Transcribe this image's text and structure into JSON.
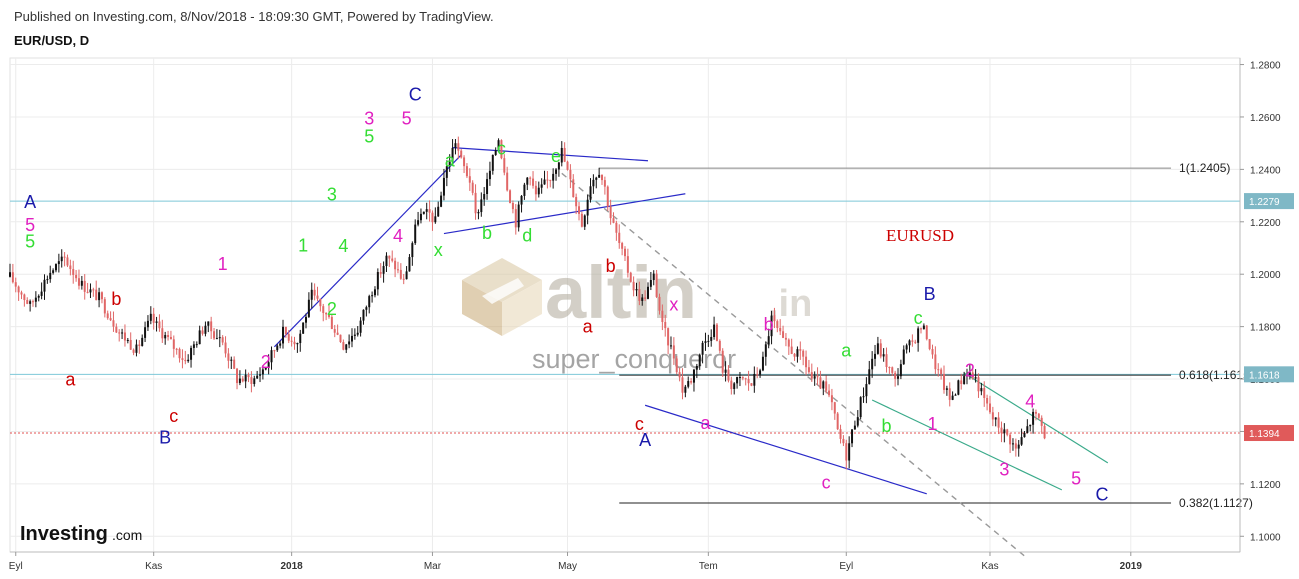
{
  "header": {
    "published": "Published on Investing.com, 8/Nov/2018 - 18:09:30 GMT, Powered by TradingView.",
    "symbol": "EUR/USD, D"
  },
  "brand": {
    "logo_text": "Investing",
    "logo_suffix": ".com"
  },
  "watermark": {
    "site": "altin",
    "site_suffix": ".in",
    "author": "super_conqueror"
  },
  "chart_label": {
    "text": "EURUSD",
    "color": "#cc0000"
  },
  "colors": {
    "bull": "#111111",
    "bear": "#e06666",
    "grid": "#ececec",
    "hline_blue": "#7ec8d8",
    "hline_current": "#e05050",
    "trend_blue": "#2a2ac8",
    "trend_green": "#3aaa8a",
    "fib": "#222222",
    "fib_level_1": "#888888",
    "projection": "#999999",
    "badge_bg": "#7fb8c6",
    "badge_current_bg": "#e05a5a"
  },
  "chart_data": {
    "type": "candlestick",
    "y_axis": {
      "ticks": [
        "1.1000",
        "1.1200",
        "1.1400",
        "1.1600",
        "1.1800",
        "1.2000",
        "1.2200",
        "1.2400",
        "1.2600",
        "1.2800"
      ],
      "ylim": [
        1.094,
        1.2825
      ]
    },
    "x_axis": {
      "ticks": [
        "Eyl",
        "Kas",
        "2018",
        "Mar",
        "May",
        "Tem",
        "Eyl",
        "Kas",
        "2019",
        "Mar"
      ]
    },
    "price_badges": [
      {
        "label": "1.2279",
        "value": 1.2279,
        "kind": "level"
      },
      {
        "label": "1.1618",
        "value": 1.1618,
        "kind": "level"
      },
      {
        "label": "1.1394",
        "value": 1.1394,
        "kind": "current"
      }
    ],
    "fib_levels": [
      {
        "label": "1(1.2405)",
        "value": 1.2405
      },
      {
        "label": "0.618(1.1615)",
        "value": 1.1615
      },
      {
        "label": "0.382(1.1127)",
        "value": 1.1127
      }
    ],
    "price_path": [
      [
        0,
        1.199
      ],
      [
        7,
        1.188
      ],
      [
        14,
        1.201
      ],
      [
        19,
        1.206
      ],
      [
        25,
        1.196
      ],
      [
        31,
        1.191
      ],
      [
        38,
        1.178
      ],
      [
        44,
        1.171
      ],
      [
        49,
        1.183
      ],
      [
        55,
        1.175
      ],
      [
        61,
        1.167
      ],
      [
        68,
        1.181
      ],
      [
        74,
        1.174
      ],
      [
        79,
        1.16
      ],
      [
        85,
        1.16
      ],
      [
        89,
        1.165
      ],
      [
        95,
        1.178
      ],
      [
        100,
        1.174
      ],
      [
        105,
        1.192
      ],
      [
        111,
        1.183
      ],
      [
        116,
        1.173
      ],
      [
        121,
        1.179
      ],
      [
        126,
        1.194
      ],
      [
        131,
        1.206
      ],
      [
        134,
        1.203
      ],
      [
        137,
        1.197
      ],
      [
        142,
        1.222
      ],
      [
        146,
        1.223
      ],
      [
        148,
        1.22
      ],
      [
        151,
        1.237
      ],
      [
        155,
        1.251
      ],
      [
        157,
        1.243
      ],
      [
        160,
        1.236
      ],
      [
        162,
        1.222
      ],
      [
        166,
        1.235
      ],
      [
        170,
        1.252
      ],
      [
        173,
        1.234
      ],
      [
        176,
        1.22
      ],
      [
        180,
        1.239
      ],
      [
        183,
        1.23
      ],
      [
        188,
        1.237
      ],
      [
        192,
        1.247
      ],
      [
        196,
        1.231
      ],
      [
        199,
        1.219
      ],
      [
        202,
        1.235
      ],
      [
        205,
        1.24
      ],
      [
        207,
        1.233
      ],
      [
        209,
        1.222
      ],
      [
        213,
        1.208
      ],
      [
        217,
        1.195
      ],
      [
        220,
        1.19
      ],
      [
        224,
        1.199
      ],
      [
        227,
        1.18
      ],
      [
        231,
        1.169
      ],
      [
        234,
        1.156
      ],
      [
        237,
        1.16
      ],
      [
        241,
        1.173
      ],
      [
        245,
        1.18
      ],
      [
        248,
        1.164
      ],
      [
        251,
        1.158
      ],
      [
        255,
        1.16
      ],
      [
        258,
        1.158
      ],
      [
        262,
        1.167
      ],
      [
        265,
        1.183
      ],
      [
        269,
        1.174
      ],
      [
        273,
        1.17
      ],
      [
        276,
        1.168
      ],
      [
        279,
        1.16
      ],
      [
        283,
        1.157
      ],
      [
        286,
        1.15
      ],
      [
        288,
        1.14
      ],
      [
        291,
        1.131
      ],
      [
        294,
        1.144
      ],
      [
        297,
        1.155
      ],
      [
        300,
        1.168
      ],
      [
        302,
        1.172
      ],
      [
        305,
        1.166
      ],
      [
        308,
        1.159
      ],
      [
        311,
        1.17
      ],
      [
        314,
        1.174
      ],
      [
        317,
        1.18
      ],
      [
        319,
        1.177
      ],
      [
        321,
        1.168
      ],
      [
        324,
        1.16
      ],
      [
        327,
        1.152
      ],
      [
        330,
        1.158
      ],
      [
        333,
        1.163
      ],
      [
        336,
        1.16
      ],
      [
        339,
        1.152
      ],
      [
        342,
        1.145
      ],
      [
        345,
        1.141
      ],
      [
        348,
        1.137
      ],
      [
        350,
        1.133
      ],
      [
        353,
        1.139
      ],
      [
        356,
        1.146
      ],
      [
        358,
        1.145
      ],
      [
        360,
        1.139
      ]
    ],
    "wave_labels": [
      {
        "text": "A",
        "color": "#1a1aaa",
        "t": 7,
        "p": 1.2275
      },
      {
        "text": "5",
        "color": "#e020c0",
        "t": 7,
        "p": 1.2187
      },
      {
        "text": "5",
        "color": "#33dd33",
        "t": 7,
        "p": 1.2125
      },
      {
        "text": "a",
        "color": "#cc0000",
        "t": 21,
        "p": 1.1598
      },
      {
        "text": "b",
        "color": "#cc0000",
        "t": 37,
        "p": 1.1905
      },
      {
        "text": "c",
        "color": "#cc0000",
        "t": 57,
        "p": 1.1458
      },
      {
        "text": "B",
        "color": "#1a1aaa",
        "t": 54,
        "p": 1.1377
      },
      {
        "text": "1",
        "color": "#e020c0",
        "t": 74,
        "p": 1.2038
      },
      {
        "text": "2",
        "color": "#e020c0",
        "t": 89,
        "p": 1.1665
      },
      {
        "text": "1",
        "color": "#33dd33",
        "t": 102,
        "p": 1.211
      },
      {
        "text": "2",
        "color": "#33dd33",
        "t": 112,
        "p": 1.1868
      },
      {
        "text": "3",
        "color": "#33dd33",
        "t": 112,
        "p": 1.2305
      },
      {
        "text": "4",
        "color": "#33dd33",
        "t": 116,
        "p": 1.2108
      },
      {
        "text": "5",
        "color": "#33dd33",
        "t": 125,
        "p": 1.2525
      },
      {
        "text": "3",
        "color": "#e020c0",
        "t": 125,
        "p": 1.2595
      },
      {
        "text": "4",
        "color": "#e020c0",
        "t": 135,
        "p": 1.2145
      },
      {
        "text": "5",
        "color": "#e020c0",
        "t": 138,
        "p": 1.2595
      },
      {
        "text": "C",
        "color": "#1a1aaa",
        "t": 141,
        "p": 1.2685
      },
      {
        "text": "x",
        "color": "#33dd33",
        "t": 149,
        "p": 1.2092
      },
      {
        "text": "a",
        "color": "#33dd33",
        "t": 153,
        "p": 1.2433
      },
      {
        "text": "b",
        "color": "#33dd33",
        "t": 166,
        "p": 1.2158
      },
      {
        "text": "c",
        "color": "#33dd33",
        "t": 171,
        "p": 1.248
      },
      {
        "text": "d",
        "color": "#33dd33",
        "t": 180,
        "p": 1.2148
      },
      {
        "text": "e",
        "color": "#33dd33",
        "t": 190,
        "p": 1.2452
      },
      {
        "text": "a",
        "color": "#cc0000",
        "t": 201,
        "p": 1.18
      },
      {
        "text": "b",
        "color": "#cc0000",
        "t": 209,
        "p": 1.2032
      },
      {
        "text": "x",
        "color": "#e020c0",
        "t": 231,
        "p": 1.1885
      },
      {
        "text": "c",
        "color": "#cc0000",
        "t": 219,
        "p": 1.1428
      },
      {
        "text": "A",
        "color": "#1a1aaa",
        "t": 221,
        "p": 1.1368
      },
      {
        "text": "a",
        "color": "#e020c0",
        "t": 242,
        "p": 1.1433
      },
      {
        "text": "b",
        "color": "#e020c0",
        "t": 264,
        "p": 1.1808
      },
      {
        "text": "a",
        "color": "#33dd33",
        "t": 291,
        "p": 1.1708
      },
      {
        "text": "c",
        "color": "#e020c0",
        "t": 284,
        "p": 1.1205
      },
      {
        "text": "b",
        "color": "#33dd33",
        "t": 305,
        "p": 1.142
      },
      {
        "text": "c",
        "color": "#33dd33",
        "t": 316,
        "p": 1.1833
      },
      {
        "text": "B",
        "color": "#1a1aaa",
        "t": 320,
        "p": 1.1925
      },
      {
        "text": "2",
        "color": "#e020c0",
        "t": 334,
        "p": 1.1633
      },
      {
        "text": "1",
        "color": "#e020c0",
        "t": 321,
        "p": 1.1428
      },
      {
        "text": "4",
        "color": "#e020c0",
        "t": 355,
        "p": 1.1515
      },
      {
        "text": "3",
        "color": "#e020c0",
        "t": 346,
        "p": 1.1255
      },
      {
        "text": "5",
        "color": "#e020c0",
        "t": 371,
        "p": 1.122
      },
      {
        "text": "C",
        "color": "#1a1aaa",
        "t": 380,
        "p": 1.116
      }
    ],
    "trend_lines": [
      {
        "name": "impulse-support",
        "color": "#2a2ac8",
        "from": [
          92,
          1.1723
        ],
        "to": [
          157,
          1.2455
        ]
      },
      {
        "name": "triangle-upper",
        "color": "#2a2ac8",
        "from": [
          154,
          1.2483
        ],
        "to": [
          222,
          1.2433
        ]
      },
      {
        "name": "triangle-lower",
        "color": "#2a2ac8",
        "from": [
          151,
          1.2155
        ],
        "to": [
          235,
          1.2307
        ]
      },
      {
        "name": "channel-lower-blue",
        "color": "#2a2ac8",
        "from": [
          221,
          1.15
        ],
        "to": [
          319,
          1.1162
        ]
      },
      {
        "name": "channel-upper-green",
        "color": "#3aaa8a",
        "from": [
          332,
          1.1623
        ],
        "to": [
          382,
          1.128
        ]
      },
      {
        "name": "channel-lower-green",
        "color": "#3aaa8a",
        "from": [
          300,
          1.152
        ],
        "to": [
          366,
          1.1177
        ]
      },
      {
        "name": "projection-dashed",
        "color": "#999999",
        "dashed": true,
        "from": [
          192,
          1.2385
        ],
        "to": [
          353,
          1.0925
        ]
      }
    ]
  }
}
